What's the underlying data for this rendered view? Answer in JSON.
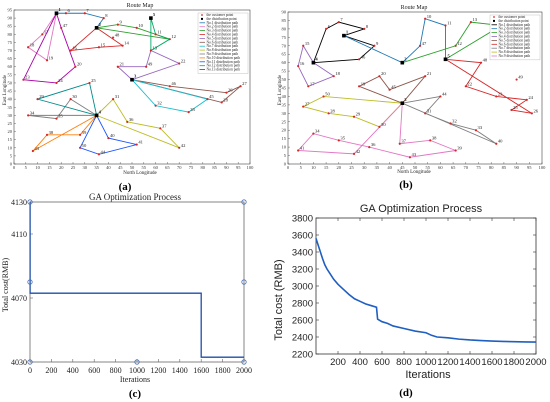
{
  "chart_data": [
    {
      "panel": "(a)",
      "type": "scatter",
      "title": "Route Map",
      "xlabel": "North Longitude",
      "ylabel": "East Longitude",
      "xlim": [
        0,
        100
      ],
      "ylim": [
        0,
        95
      ],
      "xticks": [
        0,
        5,
        10,
        15,
        20,
        25,
        30,
        35,
        40,
        45,
        50,
        55,
        60,
        65,
        70,
        75,
        80,
        85,
        90,
        95,
        100
      ],
      "yticks": [
        0,
        5,
        10,
        15,
        20,
        25,
        30,
        35,
        40,
        45,
        50,
        55,
        60,
        65,
        70,
        75,
        80,
        85,
        90,
        95
      ],
      "legend": [
        "the customer point",
        "the distribution point",
        "No.1 distribution path",
        "No.2 distribution path",
        "No.3 distribution path",
        "No.4 distribution path",
        "No.5 distribution path",
        "No.6 distribution path",
        "No.7 distribution path",
        "No.8 distribution path",
        "No.9 distribution path",
        "No.10 distribution path",
        "No.11 distribution path",
        "No.12 distribution path",
        "No.13 distribution path"
      ],
      "legend_position": "top-right",
      "colors": [
        "#1f77b4",
        "#e377c2",
        "#2ca02c",
        "#d62728",
        "#9467bd",
        "#8c564b",
        "#17becf",
        "#bcbd22",
        "#7f7f7f",
        "#ff7f0e",
        "#1a55ff",
        "#00aa66",
        "#aa00aa",
        "#008b8b"
      ],
      "depots": [
        {
          "label": "1",
          "x": 18,
          "y": 93
        },
        {
          "label": "2",
          "x": 35,
          "y": 84
        },
        {
          "label": "3",
          "x": 50,
          "y": 52
        },
        {
          "label": "4",
          "x": 35,
          "y": 30
        },
        {
          "label": "5",
          "x": 58,
          "y": 90
        }
      ],
      "points": [
        {
          "label": "6",
          "x": 22,
          "y": 93
        },
        {
          "label": "7",
          "x": 30,
          "y": 93
        },
        {
          "label": "8",
          "x": 38,
          "y": 90
        },
        {
          "label": "9",
          "x": 44,
          "y": 86
        },
        {
          "label": "10",
          "x": 52,
          "y": 84
        },
        {
          "label": "11",
          "x": 60,
          "y": 80
        },
        {
          "label": "12",
          "x": 66,
          "y": 77
        },
        {
          "label": "13",
          "x": 58,
          "y": 70
        },
        {
          "label": "14",
          "x": 46,
          "y": 73
        },
        {
          "label": "15",
          "x": 36,
          "y": 72
        },
        {
          "label": "16",
          "x": 24,
          "y": 70
        },
        {
          "label": "17",
          "x": 12,
          "y": 80
        },
        {
          "label": "18",
          "x": 6,
          "y": 72
        },
        {
          "label": "19",
          "x": 14,
          "y": 64
        },
        {
          "label": "20",
          "x": 26,
          "y": 60
        },
        {
          "label": "21",
          "x": 44,
          "y": 60
        },
        {
          "label": "22",
          "x": 70,
          "y": 62
        },
        {
          "label": "23",
          "x": 4,
          "y": 52
        },
        {
          "label": "24",
          "x": 18,
          "y": 50
        },
        {
          "label": "25",
          "x": 32,
          "y": 50
        },
        {
          "label": "26",
          "x": 90,
          "y": 44
        },
        {
          "label": "27",
          "x": 96,
          "y": 48
        },
        {
          "label": "28",
          "x": 88,
          "y": 38
        },
        {
          "label": "29",
          "x": 10,
          "y": 40
        },
        {
          "label": "30",
          "x": 24,
          "y": 40
        },
        {
          "label": "31",
          "x": 42,
          "y": 40
        },
        {
          "label": "32",
          "x": 60,
          "y": 36
        },
        {
          "label": "33",
          "x": 74,
          "y": 32
        },
        {
          "label": "34",
          "x": 6,
          "y": 30
        },
        {
          "label": "35",
          "x": 18,
          "y": 28
        },
        {
          "label": "36",
          "x": 48,
          "y": 26
        },
        {
          "label": "37",
          "x": 62,
          "y": 22
        },
        {
          "label": "38",
          "x": 14,
          "y": 18
        },
        {
          "label": "39",
          "x": 28,
          "y": 18
        },
        {
          "label": "40",
          "x": 40,
          "y": 16
        },
        {
          "label": "41",
          "x": 52,
          "y": 12
        },
        {
          "label": "42",
          "x": 70,
          "y": 10
        },
        {
          "label": "43",
          "x": 8,
          "y": 8
        },
        {
          "label": "44",
          "x": 36,
          "y": 6
        },
        {
          "label": "45",
          "x": 82,
          "y": 40
        },
        {
          "label": "46",
          "x": 66,
          "y": 48
        },
        {
          "label": "47",
          "x": 20,
          "y": 84
        },
        {
          "label": "48",
          "x": 42,
          "y": 78
        },
        {
          "label": "49",
          "x": 56,
          "y": 60
        },
        {
          "label": "50",
          "x": 28,
          "y": 10
        }
      ],
      "routes": [
        [
          "1",
          "6",
          "7",
          "8",
          "2"
        ],
        [
          "1",
          "17",
          "18",
          "19",
          "1"
        ],
        [
          "2",
          "9",
          "10",
          "11",
          "12",
          "2"
        ],
        [
          "2",
          "14",
          "15",
          "16",
          "2"
        ],
        [
          "3",
          "21",
          "49",
          "13",
          "22",
          "3"
        ],
        [
          "3",
          "46",
          "26",
          "27",
          "28",
          "3"
        ],
        [
          "3",
          "45",
          "33",
          "32",
          "3"
        ],
        [
          "4",
          "31",
          "36",
          "37",
          "42",
          "4"
        ],
        [
          "4",
          "30",
          "35",
          "34",
          "4"
        ],
        [
          "4",
          "39",
          "38",
          "43",
          "4"
        ],
        [
          "4",
          "40",
          "41",
          "44",
          "50",
          "4"
        ],
        [
          "5",
          "11",
          "12",
          "13",
          "5"
        ],
        [
          "1",
          "47",
          "20",
          "24",
          "23",
          "1"
        ],
        [
          "4",
          "25",
          "29",
          "4"
        ]
      ]
    },
    {
      "panel": "(b)",
      "type": "scatter",
      "title": "Route Map",
      "xlabel": "North Longitude",
      "ylabel": "East Longitude",
      "xlim": [
        0,
        100
      ],
      "ylim": [
        0,
        90
      ],
      "xticks": [
        0,
        5,
        10,
        15,
        20,
        25,
        30,
        35,
        40,
        45,
        50,
        55,
        60,
        65,
        70,
        75,
        80,
        85,
        90,
        95,
        100
      ],
      "yticks": [
        0,
        5,
        10,
        15,
        20,
        25,
        30,
        35,
        40,
        45,
        50,
        55,
        60,
        65,
        70,
        75,
        80,
        85,
        90
      ],
      "legend": [
        "the customer point",
        "the distribution point",
        "No.1 distribution path",
        "No.2 distribution path",
        "No.3 distribution path",
        "No.4 distribution path",
        "No.5 distribution path",
        "No.6 distribution path",
        "No.7 distribution path",
        "No.8 distribution path",
        "No.9 distribution path"
      ],
      "legend_position": "top-right",
      "colors": [
        "#000000",
        "#1f77b4",
        "#2ca02c",
        "#9467bd",
        "#8c564b",
        "#d62728",
        "#7f7f7f",
        "#bcbd22",
        "#e377c2"
      ],
      "depots": [
        {
          "label": "1",
          "x": 22,
          "y": 76
        },
        {
          "label": "2",
          "x": 45,
          "y": 60
        },
        {
          "label": "3",
          "x": 45,
          "y": 36
        },
        {
          "label": "4",
          "x": 10,
          "y": 60
        },
        {
          "label": "5",
          "x": 62,
          "y": 62
        }
      ],
      "points": [
        {
          "label": "6",
          "x": 15,
          "y": 80
        },
        {
          "label": "7",
          "x": 20,
          "y": 84
        },
        {
          "label": "8",
          "x": 30,
          "y": 80
        },
        {
          "label": "9",
          "x": 34,
          "y": 70
        },
        {
          "label": "10",
          "x": 54,
          "y": 86
        },
        {
          "label": "11",
          "x": 62,
          "y": 82
        },
        {
          "label": "12",
          "x": 66,
          "y": 70
        },
        {
          "label": "13",
          "x": 72,
          "y": 84
        },
        {
          "label": "14",
          "x": 84,
          "y": 82
        },
        {
          "label": "15",
          "x": 6,
          "y": 70
        },
        {
          "label": "16",
          "x": 4,
          "y": 58
        },
        {
          "label": "17",
          "x": 8,
          "y": 46
        },
        {
          "label": "18",
          "x": 18,
          "y": 52
        },
        {
          "label": "19",
          "x": 28,
          "y": 46
        },
        {
          "label": "20",
          "x": 36,
          "y": 52
        },
        {
          "label": "21",
          "x": 54,
          "y": 52
        },
        {
          "label": "22",
          "x": 70,
          "y": 46
        },
        {
          "label": "23",
          "x": 82,
          "y": 40
        },
        {
          "label": "24",
          "x": 94,
          "y": 38
        },
        {
          "label": "25",
          "x": 88,
          "y": 32
        },
        {
          "label": "26",
          "x": 96,
          "y": 30
        },
        {
          "label": "27",
          "x": 6,
          "y": 34
        },
        {
          "label": "28",
          "x": 16,
          "y": 30
        },
        {
          "label": "29",
          "x": 26,
          "y": 28
        },
        {
          "label": "30",
          "x": 36,
          "y": 22
        },
        {
          "label": "31",
          "x": 54,
          "y": 30
        },
        {
          "label": "32",
          "x": 64,
          "y": 24
        },
        {
          "label": "33",
          "x": 74,
          "y": 20
        },
        {
          "label": "34",
          "x": 10,
          "y": 18
        },
        {
          "label": "35",
          "x": 20,
          "y": 14
        },
        {
          "label": "36",
          "x": 32,
          "y": 10
        },
        {
          "label": "37",
          "x": 44,
          "y": 12
        },
        {
          "label": "38",
          "x": 56,
          "y": 14
        },
        {
          "label": "39",
          "x": 66,
          "y": 8
        },
        {
          "label": "40",
          "x": 82,
          "y": 12
        },
        {
          "label": "41",
          "x": 4,
          "y": 8
        },
        {
          "label": "42",
          "x": 26,
          "y": 6
        },
        {
          "label": "43",
          "x": 48,
          "y": 4
        },
        {
          "label": "44",
          "x": 60,
          "y": 40
        },
        {
          "label": "45",
          "x": 40,
          "y": 44
        },
        {
          "label": "46",
          "x": 28,
          "y": 62
        },
        {
          "label": "47",
          "x": 52,
          "y": 70
        },
        {
          "label": "48",
          "x": 76,
          "y": 60
        },
        {
          "label": "49",
          "x": 90,
          "y": 50
        },
        {
          "label": "50",
          "x": 14,
          "y": 40
        }
      ],
      "routes": [
        [
          "4",
          "6",
          "7",
          "8",
          "1",
          "9",
          "46",
          "4"
        ],
        [
          "1",
          "2",
          "47",
          "10",
          "11",
          "5"
        ],
        [
          "2",
          "12",
          "13",
          "14",
          "5"
        ],
        [
          "4",
          "15",
          "16",
          "17",
          "18",
          "4"
        ],
        [
          "3",
          "19",
          "20",
          "45",
          "21",
          "3"
        ],
        [
          "5",
          "48",
          "22",
          "23",
          "24",
          "25",
          "26",
          "5"
        ],
        [
          "3",
          "44",
          "31",
          "32",
          "33",
          "40",
          "3"
        ],
        [
          "3",
          "30",
          "29",
          "28",
          "27",
          "50",
          "3"
        ],
        [
          "3",
          "37",
          "38",
          "39",
          "43",
          "36",
          "35",
          "34",
          "41",
          "42",
          "3"
        ]
      ]
    },
    {
      "panel": "(c)",
      "type": "line",
      "title": "GA Optimization Process",
      "xlabel": "Iterations",
      "ylabel": "Total cost(RMB)",
      "xlim": [
        0,
        2000
      ],
      "ylim": [
        4030,
        4130
      ],
      "xticks": [
        0,
        200,
        400,
        600,
        800,
        1000,
        1200,
        1400,
        1600,
        1800,
        2000
      ],
      "yticks": [
        4030,
        4070,
        4110,
        4130
      ],
      "series": [
        {
          "x": [
            0,
            1,
            1,
            1600,
            1600,
            2000
          ],
          "y": [
            4130,
            4130,
            4073,
            4073,
            4033,
            4033
          ]
        }
      ],
      "markers": [
        [
          0,
          4130
        ],
        [
          0,
          4080
        ],
        [
          0,
          4030
        ],
        [
          1000,
          4030
        ],
        [
          2000,
          4030
        ],
        [
          2000,
          4080
        ],
        [
          2000,
          4130
        ]
      ]
    },
    {
      "panel": "(d)",
      "type": "line",
      "title": "GA Optimization Process",
      "xlabel": "Iterations",
      "ylabel": "Total cost (RMB)",
      "xlim": [
        0,
        2000
      ],
      "ylim": [
        2200,
        3800
      ],
      "xticks": [
        200,
        400,
        600,
        800,
        1000,
        1200,
        1400,
        1600,
        1800,
        2000
      ],
      "yticks": [
        2200,
        2400,
        2600,
        2800,
        3000,
        3200,
        3400,
        3600,
        3800
      ],
      "series": [
        {
          "x": [
            0,
            20,
            40,
            60,
            80,
            100,
            130,
            160,
            200,
            250,
            300,
            350,
            400,
            450,
            500,
            550,
            560,
            600,
            650,
            700,
            800,
            900,
            1000,
            1050,
            1100,
            1200,
            1300,
            1400,
            1500,
            1600,
            1700,
            1800,
            1900,
            2000
          ],
          "y": [
            3560,
            3480,
            3400,
            3320,
            3250,
            3200,
            3140,
            3080,
            3020,
            2960,
            2900,
            2850,
            2820,
            2790,
            2770,
            2750,
            2610,
            2580,
            2560,
            2530,
            2500,
            2470,
            2450,
            2420,
            2400,
            2390,
            2375,
            2365,
            2358,
            2352,
            2348,
            2345,
            2342,
            2340
          ]
        }
      ]
    }
  ],
  "captions": {
    "a": "(a)",
    "b": "(b)",
    "c": "(c)",
    "d": "(d)"
  }
}
